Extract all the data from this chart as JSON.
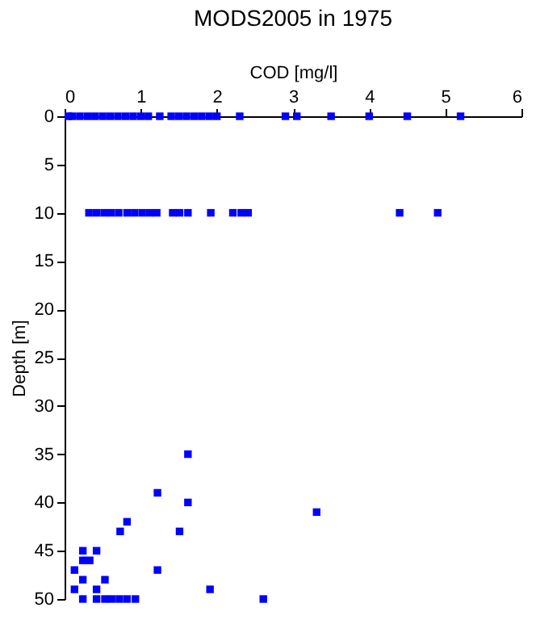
{
  "chart_data": {
    "type": "scatter",
    "title": "MODS2005 in 1975",
    "xlabel": "COD [mg/l]",
    "ylabel": "Depth [m]",
    "xlim": [
      0,
      6
    ],
    "xticks": [
      0,
      1,
      2,
      3,
      4,
      5,
      6
    ],
    "ylim": [
      50,
      0
    ],
    "yticks": [
      0,
      5,
      10,
      15,
      20,
      25,
      30,
      35,
      40,
      45,
      50
    ],
    "grid": false,
    "legend": false,
    "marker": "square",
    "series": [
      {
        "color": "#0000ff",
        "x": [
          0.05,
          0.1,
          0.2,
          0.3,
          0.4,
          0.5,
          0.6,
          0.7,
          0.8,
          0.9,
          1.0,
          1.1,
          1.25,
          1.4,
          1.5,
          1.6,
          1.7,
          1.8,
          1.9,
          2.0,
          2.3,
          2.9,
          3.05,
          3.5,
          4.0,
          4.5,
          5.2,
          0.32,
          0.42,
          0.52,
          0.61,
          0.71,
          0.82,
          0.92,
          1.02,
          1.12,
          1.21,
          1.42,
          1.51,
          1.62,
          1.92,
          2.21,
          2.32,
          2.41,
          4.4,
          4.9,
          1.62,
          1.22,
          1.62,
          3.31,
          0.82,
          0.73,
          1.51,
          0.24,
          0.42,
          0.24,
          0.33,
          0.13,
          1.22,
          0.24,
          0.53,
          0.13,
          0.42,
          1.91,
          0.24,
          0.42,
          0.53,
          0.62,
          0.72,
          0.82,
          0.93,
          2.61
        ],
        "values": [
          0,
          0,
          0,
          0,
          0,
          0,
          0,
          0,
          0,
          0,
          0,
          0,
          0,
          0,
          0,
          0,
          0,
          0,
          0,
          0,
          0,
          0,
          0,
          0,
          0,
          0,
          0,
          10,
          10,
          10,
          10,
          10,
          10,
          10,
          10,
          10,
          10,
          10,
          10,
          10,
          10,
          10,
          10,
          10,
          10,
          10,
          35,
          39,
          40,
          41,
          42,
          43,
          43,
          45,
          45,
          46,
          46,
          47,
          47,
          48,
          48,
          49,
          49,
          49,
          50,
          50,
          50,
          50,
          50,
          50,
          50,
          50
        ]
      }
    ]
  }
}
